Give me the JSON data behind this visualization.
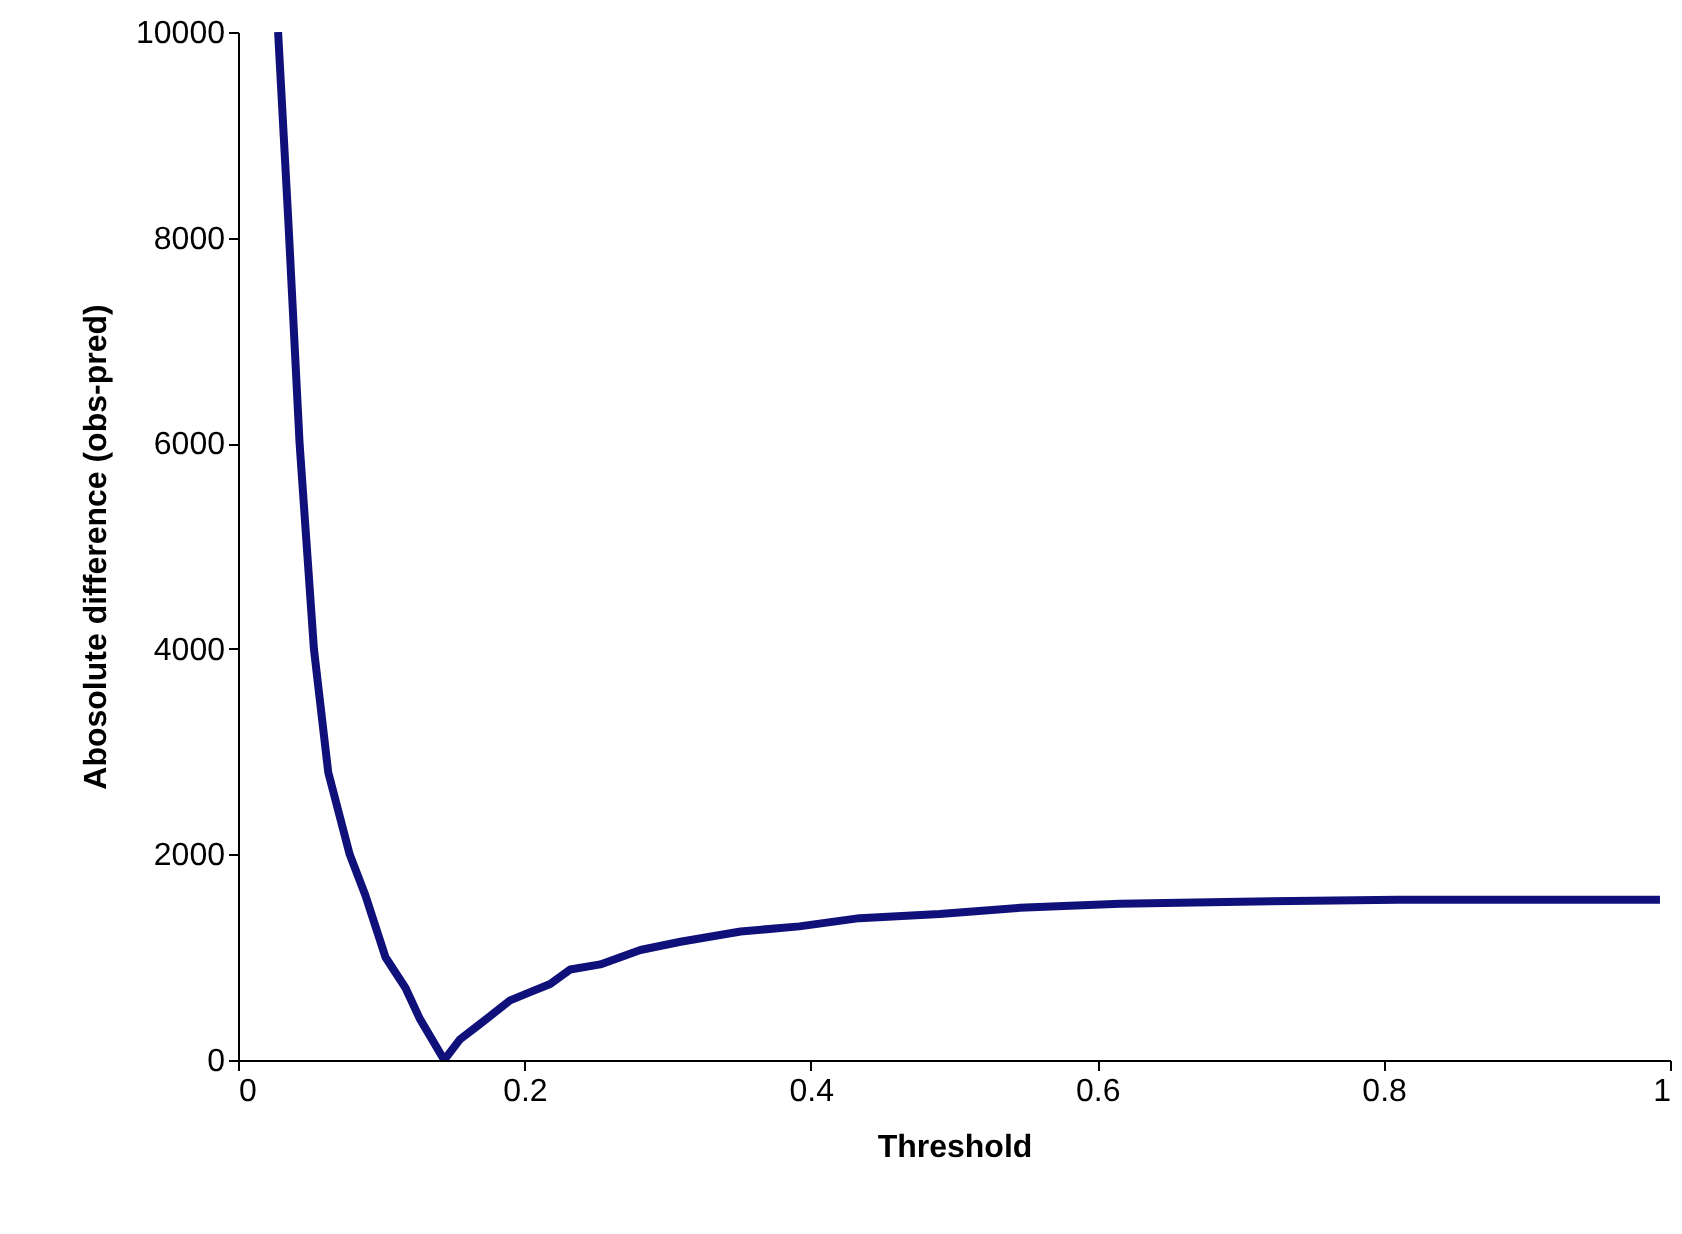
{
  "chart_data": {
    "type": "line",
    "xlabel": "Threshold",
    "ylabel": "Abosolute difference (obs-pred)",
    "x": [
      0.028,
      0.035,
      0.043,
      0.053,
      0.063,
      0.078,
      0.089,
      0.103,
      0.117,
      0.127,
      0.144,
      0.155,
      0.169,
      0.19,
      0.204,
      0.218,
      0.232,
      0.253,
      0.281,
      0.309,
      0.351,
      0.392,
      0.434,
      0.49,
      0.546,
      0.616,
      0.7,
      0.81,
      0.993
    ],
    "series": [
      {
        "color": "#10107a",
        "values": [
          10000,
          8200,
          6000,
          4000,
          2800,
          2000,
          1600,
          1000,
          700,
          400,
          0,
          200,
          350,
          580,
          660,
          740,
          880,
          930,
          1070,
          1150,
          1250,
          1300,
          1380,
          1420,
          1480,
          1520,
          1540,
          1560,
          1560
        ]
      }
    ],
    "xlim": [
      0,
      1
    ],
    "xticks": [
      0,
      0.2,
      0.4,
      0.6,
      0.8,
      1
    ],
    "ylim": [
      0,
      10000
    ],
    "yticks": [
      0,
      2000,
      4000,
      6000,
      8000,
      10000
    ],
    "grid": false,
    "marker": "none",
    "line_style": "solid"
  }
}
